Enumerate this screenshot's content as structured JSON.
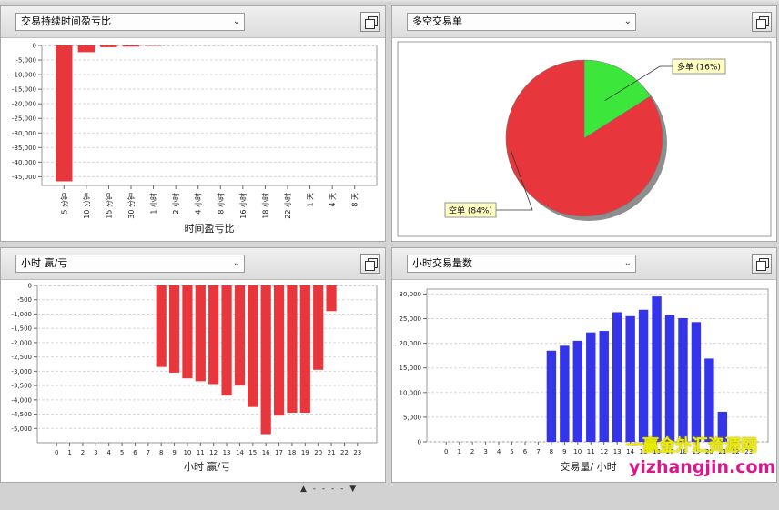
{
  "panels": {
    "duration": {
      "dropdown": "交易持续时间盈亏比"
    },
    "longshort": {
      "dropdown": "多空交易单"
    },
    "hourly": {
      "dropdown": "小时 赢/亏"
    },
    "hourvol": {
      "dropdown": "小时交易量数"
    }
  },
  "icons": {
    "dropdown": "chevron-down-icon",
    "copy": "copy-window-icon"
  },
  "colors": {
    "red": "#e8373c",
    "green": "#3de63a",
    "blue": "#3434e8",
    "tooltip": "#ffffc4"
  },
  "bottom_controls": "▲ - - - - ▼",
  "watermark": {
    "cn": "一赢金外汇资源网",
    "url": "yizhangjin.com"
  },
  "chart_data": [
    {
      "id": "duration",
      "type": "bar",
      "xlabel": "时间盈亏比",
      "ylabel": "",
      "categories": [
        "5 分钟",
        "10 分钟",
        "15 分钟",
        "30 分钟",
        "1 小时",
        "2 小时",
        "4 小时",
        "8 小时",
        "16 小时",
        "18 小时",
        "22 小时",
        "1 天",
        "4 天",
        "8 天"
      ],
      "values": [
        -46600,
        -2300,
        -600,
        -400,
        -150,
        0,
        0,
        0,
        0,
        0,
        0,
        0,
        0,
        0
      ],
      "ylim": [
        -48000,
        0
      ],
      "yticks": [
        0,
        -5000,
        -10000,
        -15000,
        -20000,
        -25000,
        -30000,
        -35000,
        -40000,
        -45000
      ],
      "ytick_labels": [
        "0",
        "-5,000",
        "-10,000",
        "-15,000",
        "-20,000",
        "-25,000",
        "-30,000",
        "-35,000",
        "-40,000",
        "-45,000"
      ],
      "grid": true
    },
    {
      "id": "longshort",
      "type": "pie",
      "slices": [
        {
          "label": "多单 (16%)",
          "value": 16
        },
        {
          "label": "空单 (84%)",
          "value": 84
        }
      ]
    },
    {
      "id": "hourly",
      "type": "bar",
      "xlabel": "小时 赢/亏",
      "ylabel": "",
      "categories": [
        "0",
        "1",
        "2",
        "3",
        "4",
        "5",
        "6",
        "7",
        "8",
        "9",
        "10",
        "11",
        "12",
        "13",
        "14",
        "15",
        "16",
        "17",
        "18",
        "19",
        "20",
        "21",
        "22",
        "23"
      ],
      "values": [
        0,
        0,
        0,
        0,
        0,
        0,
        0,
        0,
        -2850,
        -3050,
        -3250,
        -3350,
        -3450,
        -3850,
        -3500,
        -4250,
        -5200,
        -4550,
        -4450,
        -4450,
        -2950,
        -900,
        0,
        0
      ],
      "ylim": [
        -5500,
        0
      ],
      "yticks": [
        0,
        -500,
        -1000,
        -1500,
        -2000,
        -2500,
        -3000,
        -3500,
        -4000,
        -4500,
        -5000
      ],
      "ytick_labels": [
        "0",
        "-500",
        "-1,000",
        "-1,500",
        "-2,000",
        "-2,500",
        "-3,000",
        "-3,500",
        "-4,000",
        "-4,500",
        "-5,000"
      ],
      "grid": true
    },
    {
      "id": "hourvol",
      "type": "bar",
      "xlabel": "交易量/ 小时",
      "ylabel": "",
      "categories": [
        "0",
        "1",
        "2",
        "3",
        "4",
        "5",
        "6",
        "7",
        "8",
        "9",
        "10",
        "11",
        "12",
        "13",
        "14",
        "15",
        "16",
        "17",
        "18",
        "19",
        "20",
        "21",
        "22",
        "23"
      ],
      "values": [
        0,
        0,
        0,
        0,
        0,
        0,
        0,
        0,
        18500,
        19500,
        20500,
        22200,
        22500,
        26300,
        25500,
        26800,
        29500,
        25700,
        25100,
        24300,
        16900,
        6100,
        0,
        0
      ],
      "ylim": [
        0,
        31000
      ],
      "yticks": [
        0,
        5000,
        10000,
        15000,
        20000,
        25000,
        30000
      ],
      "ytick_labels": [
        "0",
        "5,000",
        "10,000",
        "15,000",
        "20,000",
        "25,000",
        "30,000"
      ],
      "grid": true
    }
  ]
}
